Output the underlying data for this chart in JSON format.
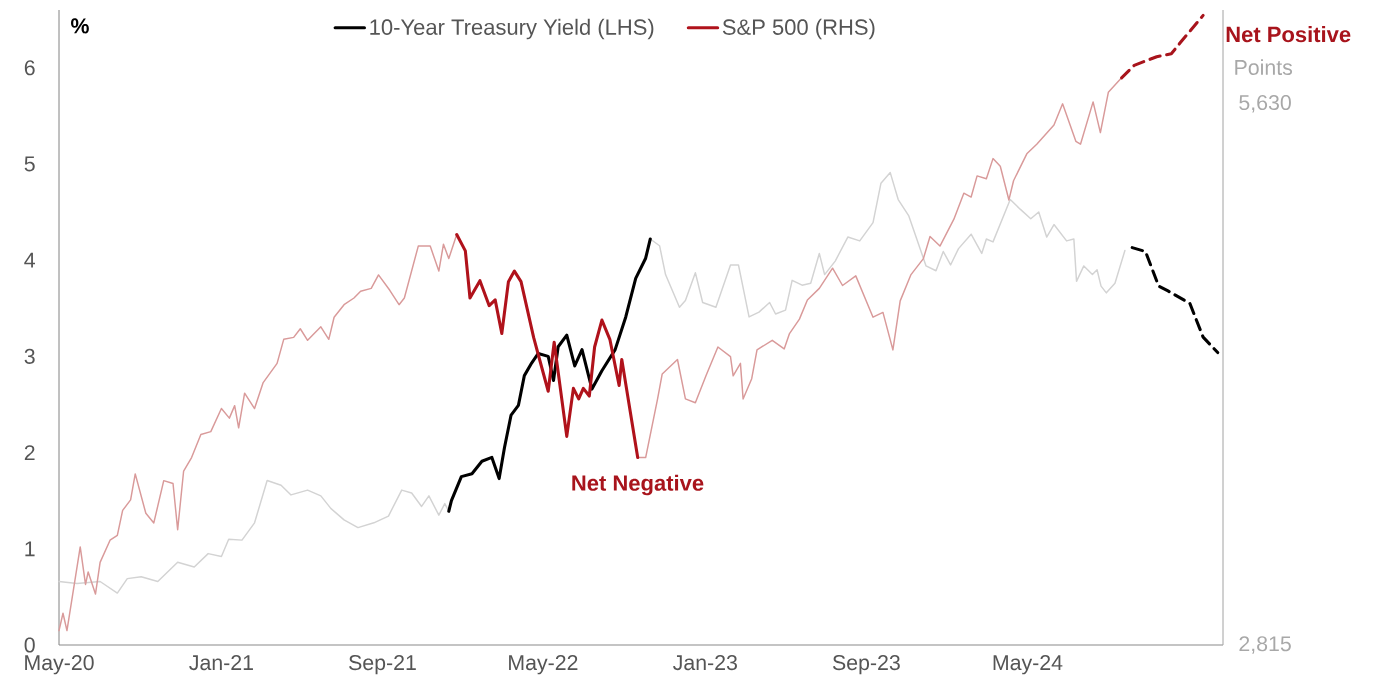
{
  "chart_data": {
    "type": "line",
    "ylabel": "%",
    "y2label": "Points",
    "legend": "top",
    "xlim": [
      "2020-05-01",
      "2025-02-20"
    ],
    "xticks": [
      {
        "value": "2020-05-01",
        "label": "May-20"
      },
      {
        "value": "2021-01-01",
        "label": "Jan-21"
      },
      {
        "value": "2021-09-01",
        "label": "Sep-21"
      },
      {
        "value": "2022-05-01",
        "label": "May-22"
      },
      {
        "value": "2023-01-01",
        "label": "Jan-23"
      },
      {
        "value": "2023-09-01",
        "label": "Sep-23"
      },
      {
        "value": "2024-05-01",
        "label": "May-24"
      }
    ],
    "ylim": [
      0,
      6.6
    ],
    "yticks": [
      0,
      1,
      2,
      3,
      4,
      5,
      6
    ],
    "y2lim": [
      2815,
      6118
    ],
    "y2ticks": [
      {
        "value": 2815,
        "label": "2,815"
      },
      {
        "value": 5630,
        "label": "5,630"
      }
    ],
    "annotations": [
      "Net Negative",
      "Net Positive"
    ],
    "series": [
      {
        "color": "#d3d3d3",
        "x": [
          "2020-05-01",
          "2020-05-28",
          "2020-07-02",
          "2020-07-28",
          "2020-08-12",
          "2020-09-02",
          "2020-09-27",
          "2020-10-27",
          "2020-11-21",
          "2020-12-12",
          "2021-01-01",
          "2021-01-12",
          "2021-02-01",
          "2021-02-20",
          "2021-03-11",
          "2021-04-01",
          "2021-04-16",
          "2021-05-11",
          "2021-05-31",
          "2021-06-15",
          "2021-07-05",
          "2021-07-26",
          "2021-08-19",
          "2021-09-10",
          "2021-09-30",
          "2021-10-15",
          "2021-10-30",
          "2021-11-10",
          "2021-11-25",
          "2021-12-04",
          "2021-12-10"
        ],
        "values": [
          0.66,
          0.64,
          0.66,
          0.54,
          0.69,
          0.71,
          0.66,
          0.86,
          0.81,
          0.95,
          0.92,
          1.1,
          1.09,
          1.27,
          1.71,
          1.66,
          1.56,
          1.61,
          1.55,
          1.42,
          1.3,
          1.22,
          1.27,
          1.34,
          1.61,
          1.58,
          1.44,
          1.55,
          1.35,
          1.47,
          1.39
        ]
      },
      {
        "color": "#d3d3d3",
        "x": [
          "2022-10-10",
          "2022-10-24",
          "2022-11-02",
          "2022-11-23",
          "2022-12-02",
          "2022-12-17",
          "2022-12-28",
          "2023-01-17",
          "2023-02-08",
          "2023-02-20",
          "2023-03-08",
          "2023-03-23",
          "2023-04-08",
          "2023-04-17",
          "2023-05-02",
          "2023-05-12",
          "2023-05-27",
          "2023-06-09",
          "2023-06-22",
          "2023-06-30",
          "2023-07-16",
          "2023-08-04",
          "2023-08-22",
          "2023-09-11",
          "2023-09-23",
          "2023-10-07",
          "2023-10-19",
          "2023-11-04",
          "2023-11-16",
          "2023-11-30",
          "2023-12-15",
          "2023-12-26",
          "2024-01-06",
          "2024-01-18",
          "2024-02-06",
          "2024-02-22",
          "2024-02-29",
          "2024-03-10",
          "2024-04-05",
          "2024-04-20",
          "2024-05-06",
          "2024-05-18",
          "2024-05-30",
          "2024-06-10",
          "2024-06-29",
          "2024-07-10",
          "2024-07-14",
          "2024-07-25",
          "2024-08-07",
          "2024-08-14",
          "2024-08-20",
          "2024-08-28",
          "2024-09-10",
          "2024-09-25"
        ],
        "values": [
          4.22,
          4.15,
          3.85,
          3.51,
          3.58,
          3.87,
          3.56,
          3.51,
          3.95,
          3.95,
          3.41,
          3.46,
          3.56,
          3.44,
          3.48,
          3.79,
          3.74,
          3.76,
          4.07,
          3.85,
          3.99,
          4.24,
          4.2,
          4.39,
          4.8,
          4.91,
          4.63,
          4.46,
          4.22,
          3.94,
          3.89,
          4.09,
          3.95,
          4.12,
          4.27,
          4.07,
          4.22,
          4.19,
          4.63,
          4.53,
          4.43,
          4.5,
          4.24,
          4.37,
          4.2,
          4.22,
          3.78,
          3.94,
          3.85,
          3.9,
          3.73,
          3.66,
          3.76,
          4.1
        ]
      },
      {
        "color": "#d99a9a",
        "axis": "y2",
        "x": [
          "2020-05-01",
          "2020-05-07",
          "2020-05-13",
          "2020-06-02",
          "2020-06-10",
          "2020-06-14",
          "2020-06-25",
          "2020-07-02",
          "2020-07-17",
          "2020-07-28",
          "2020-08-05",
          "2020-08-17",
          "2020-08-24",
          "2020-09-09",
          "2020-09-21",
          "2020-10-06",
          "2020-10-20",
          "2020-10-27",
          "2020-11-05",
          "2020-11-17",
          "2020-12-01",
          "2020-12-16",
          "2021-01-01",
          "2021-01-13",
          "2021-01-21",
          "2021-01-27",
          "2021-02-05",
          "2021-02-20",
          "2021-03-05",
          "2021-03-26",
          "2021-04-05",
          "2021-04-20",
          "2021-04-30",
          "2021-05-11",
          "2021-05-31",
          "2021-06-12",
          "2021-06-20",
          "2021-07-05",
          "2021-07-20",
          "2021-07-30",
          "2021-08-15",
          "2021-08-26",
          "2021-09-12",
          "2021-09-26",
          "2021-10-04",
          "2021-10-25",
          "2021-11-12",
          "2021-11-25",
          "2021-12-02",
          "2021-12-10",
          "2021-12-22"
        ],
        "values": [
          2890,
          2980,
          2890,
          3325,
          3130,
          3195,
          3080,
          3245,
          3360,
          3385,
          3515,
          3570,
          3705,
          3500,
          3450,
          3670,
          3655,
          3415,
          3720,
          3790,
          3910,
          3925,
          4045,
          3995,
          4060,
          3945,
          4125,
          4045,
          4180,
          4280,
          4405,
          4415,
          4460,
          4400,
          4470,
          4405,
          4520,
          4585,
          4620,
          4655,
          4670,
          4740,
          4660,
          4585,
          4620,
          4890,
          4890,
          4760,
          4900,
          4825,
          4950
        ]
      },
      {
        "color": "#d99a9a",
        "axis": "y2",
        "x": [
          "2022-09-21",
          "2022-10-03",
          "2022-10-21",
          "2022-10-28",
          "2022-11-20",
          "2022-12-02",
          "2022-12-17",
          "2023-01-02",
          "2023-01-20",
          "2023-02-08",
          "2023-02-12",
          "2023-02-23",
          "2023-02-27",
          "2023-03-12",
          "2023-03-20",
          "2023-04-12",
          "2023-04-30",
          "2023-05-08",
          "2023-05-23",
          "2023-06-04",
          "2023-06-22",
          "2023-07-12",
          "2023-07-27",
          "2023-08-16",
          "2023-09-11",
          "2023-09-26",
          "2023-10-11",
          "2023-10-22",
          "2023-11-07",
          "2023-11-26",
          "2023-12-06",
          "2023-12-21",
          "2024-01-11",
          "2024-01-26",
          "2024-02-06",
          "2024-02-15",
          "2024-02-29",
          "2024-03-10",
          "2024-03-21",
          "2024-04-03",
          "2024-04-10",
          "2024-04-30",
          "2024-05-15",
          "2024-06-10",
          "2024-06-23",
          "2024-07-13",
          "2024-07-20",
          "2024-08-08",
          "2024-08-19",
          "2024-08-31",
          "2024-09-20"
        ],
        "values": [
          3790,
          3790,
          4095,
          4225,
          4300,
          4095,
          4075,
          4215,
          4365,
          4315,
          4215,
          4280,
          4095,
          4200,
          4350,
          4400,
          4355,
          4435,
          4510,
          4610,
          4670,
          4775,
          4685,
          4735,
          4520,
          4545,
          4350,
          4605,
          4740,
          4825,
          4940,
          4890,
          5030,
          5165,
          5145,
          5255,
          5240,
          5345,
          5305,
          5130,
          5230,
          5370,
          5420,
          5520,
          5630,
          5435,
          5420,
          5640,
          5480,
          5690,
          5765
        ]
      },
      {
        "color": "#000000",
        "line_style": "dashed",
        "x": [
          "2024-10-06",
          "2024-10-26",
          "2024-11-15",
          "2024-11-29",
          "2025-01-01",
          "2025-01-21",
          "2025-02-12"
        ],
        "values": [
          4.13,
          4.09,
          3.73,
          3.68,
          3.55,
          3.2,
          3.04
        ]
      },
      {
        "color": "#a8141c",
        "line_style": "dashed",
        "axis": "y2",
        "x": [
          "2024-09-20",
          "2024-10-09",
          "2024-11-12",
          "2024-12-04",
          "2024-12-18",
          "2025-01-21"
        ],
        "values": [
          5765,
          5830,
          5875,
          5890,
          5950,
          6090
        ]
      },
      {
        "name": "10-Year Treasury Yield (LHS)",
        "color": "#000000",
        "x": [
          "2021-12-10",
          "2021-12-14",
          "2021-12-29",
          "2022-01-14",
          "2022-01-29",
          "2022-02-13",
          "2022-02-24",
          "2022-03-04",
          "2022-03-14",
          "2022-03-25",
          "2022-04-03",
          "2022-04-14",
          "2022-04-24",
          "2022-05-09",
          "2022-05-17",
          "2022-05-24",
          "2022-06-06",
          "2022-06-18",
          "2022-06-29",
          "2022-07-14",
          "2022-07-29",
          "2022-08-18",
          "2022-09-03",
          "2022-09-18",
          "2022-10-03",
          "2022-10-10"
        ],
        "values": [
          1.39,
          1.5,
          1.75,
          1.78,
          1.91,
          1.95,
          1.73,
          2.05,
          2.39,
          2.49,
          2.8,
          2.93,
          3.03,
          3.0,
          2.75,
          3.1,
          3.22,
          2.9,
          3.07,
          2.66,
          2.85,
          3.07,
          3.41,
          3.81,
          4.02,
          4.22
        ]
      },
      {
        "name": "S&P 500 (RHS)",
        "color": "#b0121b",
        "axis": "y2",
        "x": [
          "2021-12-22",
          "2022-01-04",
          "2022-01-11",
          "2022-01-26",
          "2022-02-09",
          "2022-02-18",
          "2022-02-28",
          "2022-03-10",
          "2022-03-19",
          "2022-03-29",
          "2022-04-17",
          "2022-04-26",
          "2022-05-09",
          "2022-05-18",
          "2022-06-06",
          "2022-06-16",
          "2022-06-24",
          "2022-07-01",
          "2022-07-10",
          "2022-07-18",
          "2022-07-29",
          "2022-08-10",
          "2022-08-24",
          "2022-08-28",
          "2022-09-21"
        ],
        "values": [
          4950,
          4865,
          4620,
          4710,
          4580,
          4610,
          4435,
          4705,
          4760,
          4705,
          4415,
          4300,
          4135,
          4390,
          3900,
          4150,
          4095,
          4150,
          4110,
          4365,
          4505,
          4405,
          4165,
          4300,
          3790
        ]
      }
    ]
  }
}
